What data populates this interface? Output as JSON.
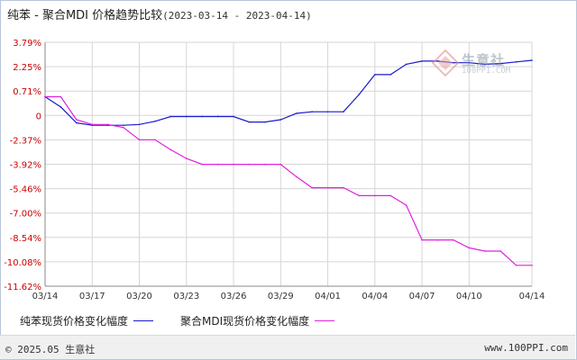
{
  "title": {
    "main": "纯苯 - 聚合MDI 价格趋势比较",
    "range": "(2023-03-14 - 2023-04-14)"
  },
  "watermark": {
    "name": "生意社",
    "url": "100PPI.COM"
  },
  "legend": {
    "series1": "纯苯现货价格变化幅度",
    "series2": "聚合MDI现货价格变化幅度"
  },
  "footer": {
    "copyright": "© 2025.05 生意社",
    "url": "www.100PPI.com"
  },
  "chart_data": {
    "type": "line",
    "y_ticks": [
      "3.79%",
      "2.25%",
      "0.71%",
      "0",
      "-2.37%",
      "-3.92%",
      "-5.46%",
      "-7.00%",
      "-8.54%",
      "-10.08%",
      "-11.62%"
    ],
    "ylim": [
      -11.62,
      3.79
    ],
    "x_ticks": [
      "03/14",
      "03/17",
      "03/20",
      "03/23",
      "03/26",
      "03/29",
      "04/01",
      "04/04",
      "04/07",
      "04/10",
      "04/14"
    ],
    "x": [
      "03/14",
      "03/15",
      "03/16",
      "03/17",
      "03/18",
      "03/19",
      "03/20",
      "03/21",
      "03/22",
      "03/23",
      "03/24",
      "03/25",
      "03/26",
      "03/27",
      "03/28",
      "03/29",
      "03/30",
      "03/31",
      "04/01",
      "04/02",
      "04/03",
      "04/04",
      "04/05",
      "04/06",
      "04/07",
      "04/08",
      "04/09",
      "04/10",
      "04/11",
      "04/12",
      "04/13",
      "04/14"
    ],
    "grid": true,
    "series": [
      {
        "name": "纯苯现货价格变化幅度",
        "color": "#1a1acc",
        "values": [
          0.35,
          -0.3,
          -1.3,
          -1.45,
          -1.45,
          -1.45,
          -1.4,
          -1.2,
          -0.9,
          -0.9,
          -0.9,
          -0.9,
          -0.9,
          -1.25,
          -1.25,
          -1.1,
          -0.7,
          -0.6,
          -0.6,
          -0.6,
          0.5,
          1.75,
          1.75,
          2.4,
          2.6,
          2.6,
          2.5,
          2.5,
          2.4,
          2.45,
          2.55,
          2.65
        ]
      },
      {
        "name": "聚合MDI现货价格变化幅度",
        "color": "#e020e0",
        "values": [
          0.35,
          0.35,
          -1.1,
          -1.4,
          -1.4,
          -1.6,
          -2.37,
          -2.37,
          -3.0,
          -3.55,
          -3.92,
          -3.92,
          -3.92,
          -3.92,
          -3.92,
          -3.92,
          -4.7,
          -5.4,
          -5.4,
          -5.4,
          -5.9,
          -5.9,
          -5.9,
          -6.5,
          -8.7,
          -8.7,
          -8.7,
          -9.2,
          -9.4,
          -9.4,
          -10.3,
          -10.3
        ]
      }
    ]
  }
}
